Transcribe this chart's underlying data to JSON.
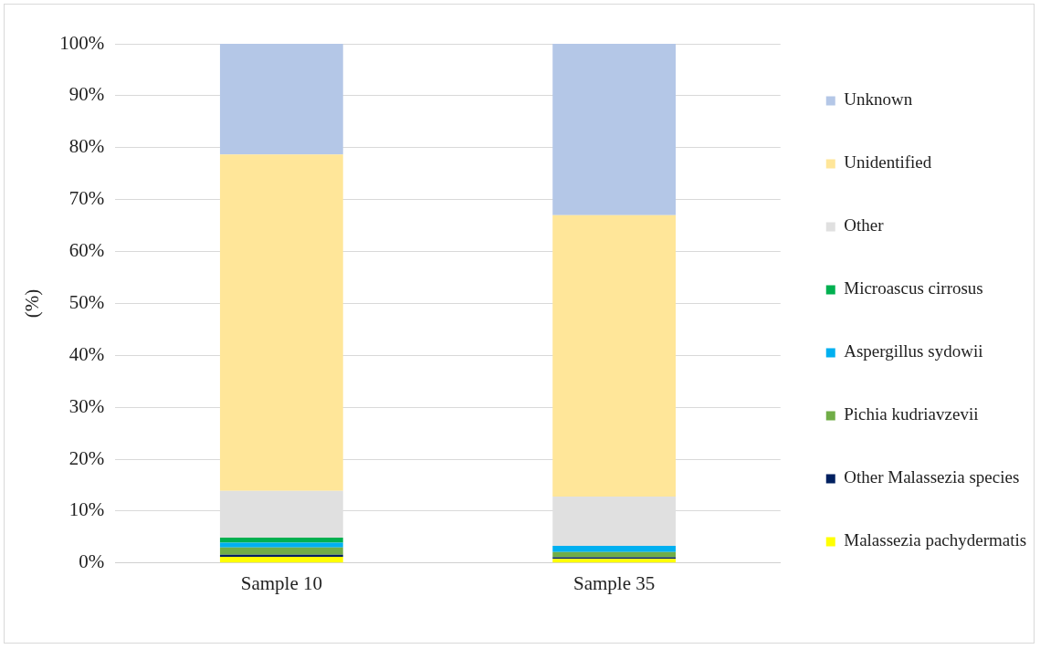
{
  "chart_data": {
    "type": "bar",
    "stacked": true,
    "ylabel": "(%)",
    "categories": [
      "Sample 10",
      "Sample 35"
    ],
    "series": [
      {
        "name": "Malassezia pachydermatis",
        "color": "#ffff00",
        "values": [
          1.2,
          0.8
        ]
      },
      {
        "name": "Other Malassezia species",
        "color": "#002060",
        "values": [
          0.4,
          0.3
        ]
      },
      {
        "name": "Pichia kudriavzevii",
        "color": "#70ad47",
        "values": [
          1.4,
          1.0
        ]
      },
      {
        "name": "Aspergillus sydowii",
        "color": "#00b0f0",
        "values": [
          0.9,
          1.2
        ]
      },
      {
        "name": "Microascus cirrosus",
        "color": "#00b050",
        "values": [
          1.0,
          0
        ]
      },
      {
        "name": "Other",
        "color": "#e0e0e0",
        "values": [
          9.0,
          9.5
        ]
      },
      {
        "name": "Unidentified",
        "color": "#ffe699",
        "values": [
          64.8,
          54.2
        ]
      },
      {
        "name": "Unknown",
        "color": "#b4c7e7",
        "values": [
          21.3,
          33.0
        ]
      }
    ],
    "ylim": [
      0,
      100
    ],
    "yticks": [
      {
        "value": 0,
        "label": "0%"
      },
      {
        "value": 10,
        "label": "10%"
      },
      {
        "value": 20,
        "label": "20%"
      },
      {
        "value": 30,
        "label": "30%"
      },
      {
        "value": 40,
        "label": "40%"
      },
      {
        "value": 50,
        "label": "50%"
      },
      {
        "value": 60,
        "label": "60%"
      },
      {
        "value": 70,
        "label": "70%"
      },
      {
        "value": 80,
        "label": "80%"
      },
      {
        "value": 90,
        "label": "90%"
      },
      {
        "value": 100,
        "label": "100%"
      }
    ],
    "grid": "y",
    "legend": "right"
  }
}
